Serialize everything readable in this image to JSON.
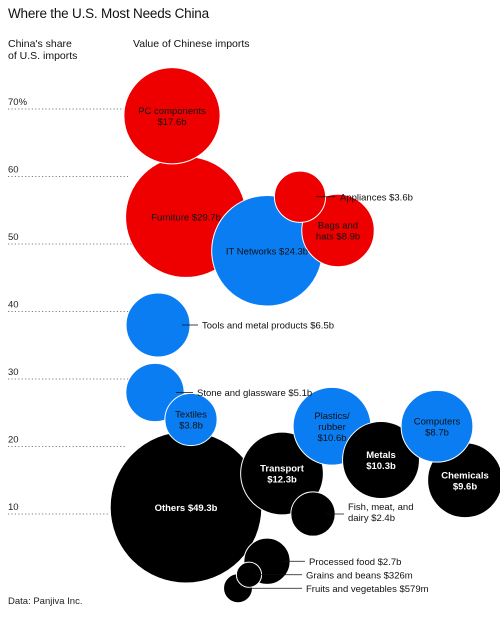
{
  "header": {
    "title": "Where the U.S. Most Needs China",
    "left_label_line1": "China's share",
    "left_label_line2": "of U.S. imports",
    "right_label": "Value of Chinese imports"
  },
  "source": "Data: Panjiva Inc.",
  "colors": {
    "red": "#ee0000",
    "blue": "#0a7df2",
    "black": "#000000"
  },
  "chart_data": {
    "type": "scatter",
    "title": "Where the U.S. Most Needs China",
    "ylabel": "China's share of U.S. imports",
    "size_label": "Value of Chinese imports",
    "y_ticks": [
      "70%",
      "60",
      "50",
      "40",
      "30",
      "20",
      "10"
    ],
    "y_tick_values": [
      70,
      60,
      50,
      40,
      30,
      20,
      10
    ],
    "ylim": [
      0,
      75
    ],
    "grid": "dotted horizontal guide lines",
    "points": [
      {
        "label_lines": [
          "PC components",
          "$17.6b"
        ],
        "share": 69,
        "value_b": 17.6,
        "color": "red",
        "label_pos": "inside"
      },
      {
        "label_lines": [
          "Furniture $29.7b"
        ],
        "share": 54,
        "value_b": 29.7,
        "color": "red",
        "label_pos": "inside"
      },
      {
        "label_lines": [
          "Appliances $3.6b"
        ],
        "share": 57,
        "value_b": 3.6,
        "color": "red",
        "label_pos": "right"
      },
      {
        "label_lines": [
          "Bags and",
          "hats $8.9b"
        ],
        "share": 52,
        "value_b": 8.9,
        "color": "red",
        "label_pos": "inside"
      },
      {
        "label_lines": [
          "IT Networks $24.3b"
        ],
        "share": 49,
        "value_b": 24.3,
        "color": "blue",
        "label_pos": "inside"
      },
      {
        "label_lines": [
          "Tools and metal products $6.5b"
        ],
        "share": 38,
        "value_b": 6.5,
        "color": "blue",
        "label_pos": "right"
      },
      {
        "label_lines": [
          "Stone and glassware $5.1b"
        ],
        "share": 28,
        "value_b": 5.1,
        "color": "blue",
        "label_pos": "right"
      },
      {
        "label_lines": [
          "Textiles",
          "$3.8b"
        ],
        "share": 24,
        "value_b": 3.8,
        "color": "blue",
        "label_pos": "inside"
      },
      {
        "label_lines": [
          "Plastics/",
          "rubber",
          "$10.6b"
        ],
        "share": 23,
        "value_b": 10.6,
        "color": "blue",
        "label_pos": "inside"
      },
      {
        "label_lines": [
          "Computers",
          "$8.7b"
        ],
        "share": 23,
        "value_b": 8.7,
        "color": "blue",
        "label_pos": "inside"
      },
      {
        "label_lines": [
          "Metals",
          "$10.3b"
        ],
        "share": 18,
        "value_b": 10.3,
        "color": "black",
        "label_pos": "inside"
      },
      {
        "label_lines": [
          "Chemicals",
          "$9.6b"
        ],
        "share": 15,
        "value_b": 9.6,
        "color": "black",
        "label_pos": "inside"
      },
      {
        "label_lines": [
          "Transport",
          "$12.3b"
        ],
        "share": 16,
        "value_b": 12.3,
        "color": "black",
        "label_pos": "inside"
      },
      {
        "label_lines": [
          "Others $49.3b"
        ],
        "share": 11,
        "value_b": 49.3,
        "color": "black",
        "label_pos": "inside"
      },
      {
        "label_lines": [
          "Fish, meat, and",
          "dairy $2.4b"
        ],
        "share": 10,
        "value_b": 2.4,
        "color": "black",
        "label_pos": "right"
      },
      {
        "label_lines": [
          "Processed food $2.7b"
        ],
        "share": 3,
        "value_b": 2.7,
        "color": "black",
        "label_pos": "right"
      },
      {
        "label_lines": [
          "Grains and beans $326m"
        ],
        "share": 1,
        "value_b": 0.326,
        "color": "black",
        "label_pos": "right"
      },
      {
        "label_lines": [
          "Fruits and vegetables $579m"
        ],
        "share": -1,
        "value_b": 0.579,
        "color": "black",
        "label_pos": "right"
      }
    ]
  }
}
